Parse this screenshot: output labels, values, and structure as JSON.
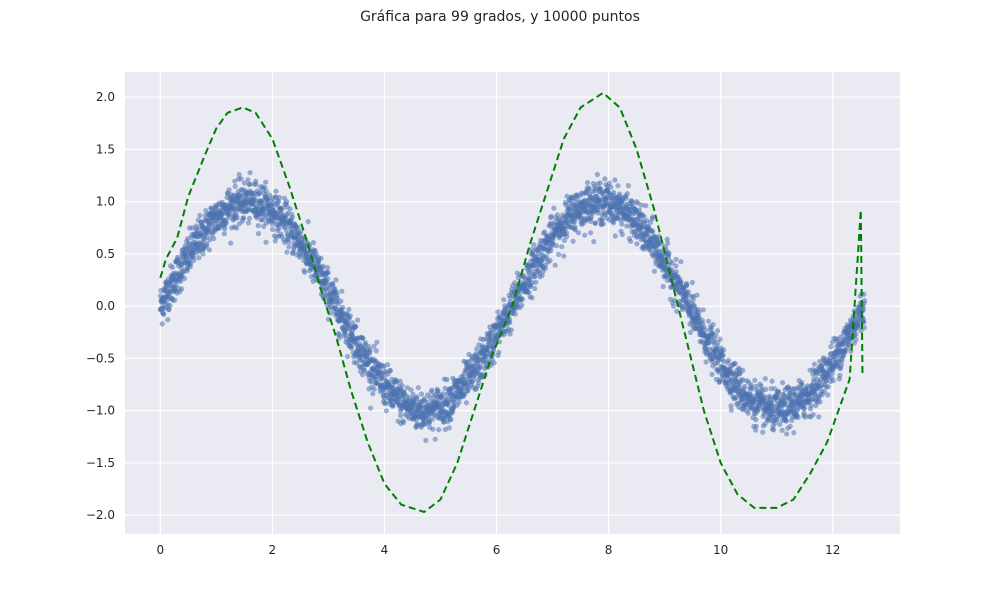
{
  "chart_data": {
    "type": "scatter",
    "title": "Gráfica para 99 grados, y 10000 puntos",
    "xlabel": "",
    "ylabel": "",
    "xlim": [
      -0.63,
      13.2
    ],
    "ylim": [
      -2.18,
      2.24
    ],
    "x_ticks": [
      0,
      2,
      4,
      6,
      8,
      10,
      12
    ],
    "x_tick_labels": [
      "0",
      "2",
      "4",
      "6",
      "8",
      "10",
      "12"
    ],
    "y_ticks": [
      -2.0,
      -1.5,
      -1.0,
      -0.5,
      0.0,
      0.5,
      1.0,
      1.5,
      2.0
    ],
    "y_tick_labels": [
      "−2.0",
      "−1.5",
      "−1.0",
      "−0.5",
      "0.0",
      "0.5",
      "1.0",
      "1.5",
      "2.0"
    ],
    "grid": true,
    "legend": "none",
    "colors": {
      "background": "#eaeaf2",
      "grid": "#ffffff",
      "scatter": "#4c72b0",
      "fit": "#008000"
    },
    "series": [
      {
        "kind": "scatter",
        "description_of_generation": "",
        "x_range": [
          0,
          12.566
        ],
        "n_points": 10000,
        "model": "sin(x) + noise",
        "noise_std": 0.1
      },
      {
        "kind": "line",
        "style": "dashed",
        "x": [
          0.0,
          0.1,
          0.3,
          0.5,
          0.8,
          1.0,
          1.2,
          1.47,
          1.7,
          2.0,
          2.3,
          2.6,
          2.9,
          3.14,
          3.4,
          3.7,
          4.0,
          4.3,
          4.71,
          5.0,
          5.3,
          5.6,
          5.9,
          6.28,
          6.6,
          6.9,
          7.2,
          7.5,
          7.9,
          8.2,
          8.5,
          8.8,
          9.1,
          9.4,
          9.7,
          10.0,
          10.3,
          10.6,
          11.0,
          11.3,
          11.6,
          11.9,
          12.1,
          12.3,
          12.45,
          12.5,
          12.53
        ],
        "y": [
          0.27,
          0.45,
          0.65,
          1.05,
          1.45,
          1.7,
          1.85,
          1.9,
          1.85,
          1.6,
          1.15,
          0.65,
          0.1,
          -0.3,
          -0.8,
          -1.3,
          -1.7,
          -1.9,
          -1.97,
          -1.85,
          -1.5,
          -1.0,
          -0.5,
          0.0,
          0.6,
          1.1,
          1.6,
          1.9,
          2.04,
          1.9,
          1.5,
          0.95,
          0.3,
          -0.35,
          -1.0,
          -1.5,
          -1.8,
          -1.93,
          -1.93,
          -1.85,
          -1.6,
          -1.3,
          -1.0,
          -0.7,
          0.5,
          0.92,
          -0.67
        ]
      }
    ]
  }
}
